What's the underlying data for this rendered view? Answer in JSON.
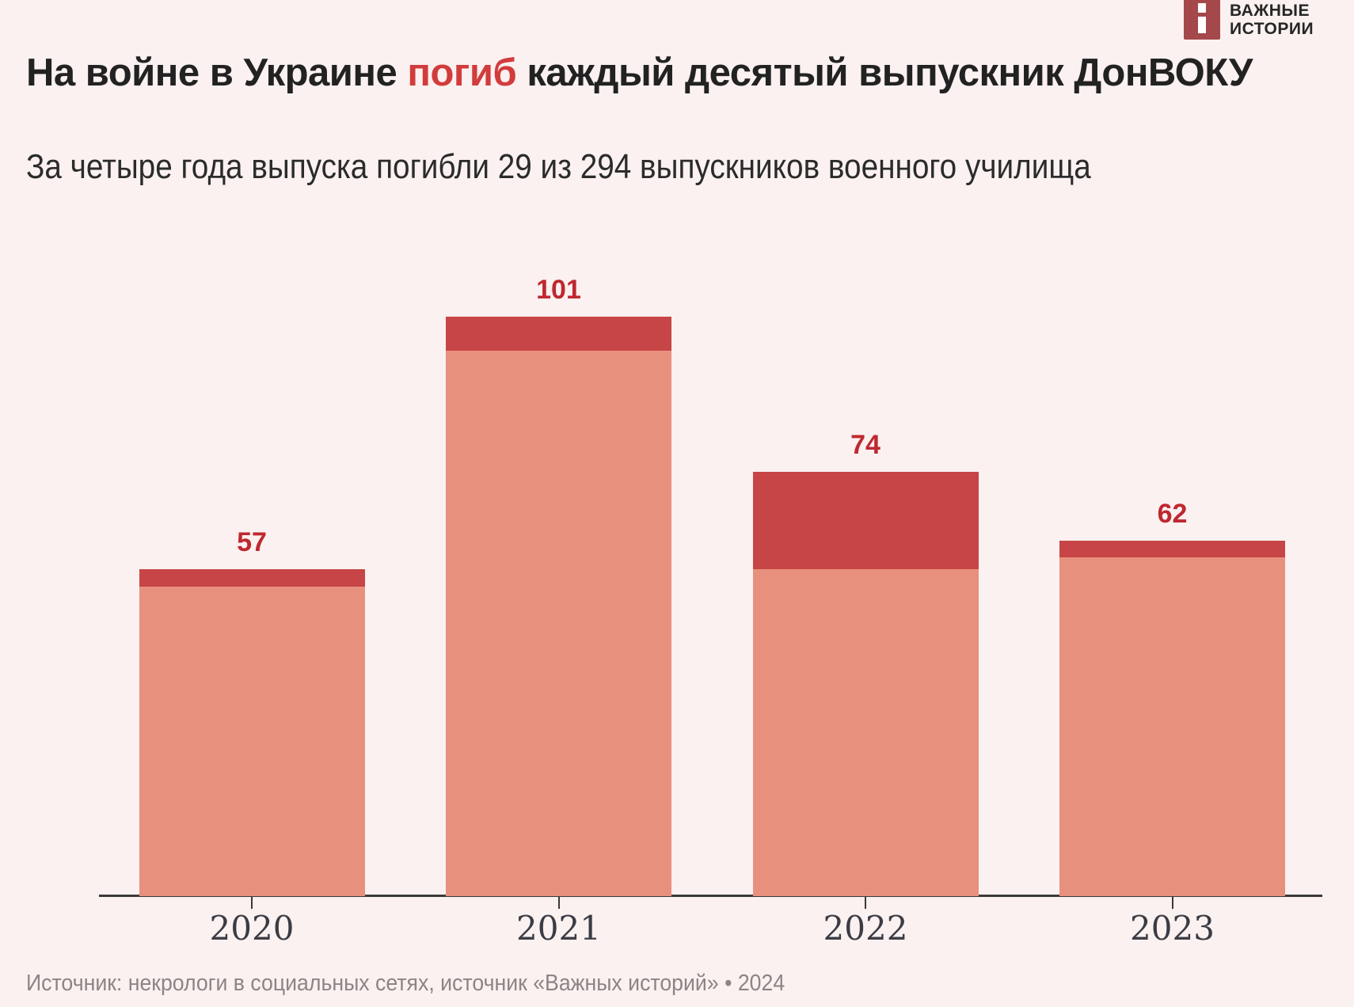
{
  "colors": {
    "background": "#faf1f0",
    "title_text": "#222222",
    "title_highlight": "#d23c3c",
    "subtitle_text": "#2b2b2b",
    "bar_light": "#e8907e",
    "bar_dark": "#c74546",
    "bar_label": "#bf2830",
    "axis": "#3a3a3a",
    "year_label": "#3b3b44",
    "source_text": "#8e8385",
    "logo_red": "#a4484c",
    "logo_text": "#262626"
  },
  "logo": {
    "line1": "ВАЖНЫЕ",
    "line2": "ИСТОРИИ"
  },
  "header": {
    "title_before": "На войне в Украине ",
    "title_highlight": "погиб",
    "title_after": " каждый десятый выпускник ДонВОКУ",
    "subtitle": "За четыре года выпуска погибли 29 из 294 выпускников военного училища"
  },
  "chart_data": {
    "type": "bar",
    "stacked": true,
    "categories": [
      "2020",
      "2021",
      "2022",
      "2023"
    ],
    "totals": [
      57,
      101,
      74,
      62
    ],
    "series": [
      {
        "name": "deaths-top-segment",
        "values": [
          3,
          6,
          17,
          3
        ]
      },
      {
        "name": "other-graduates-segment",
        "values": [
          54,
          95,
          57,
          59
        ]
      }
    ],
    "bar_value_labels": [
      "57",
      "101",
      "74",
      "62"
    ],
    "xlabel": "",
    "ylabel": "",
    "ylim": [
      0,
      110
    ],
    "grid": false,
    "legend": "none"
  },
  "footer": {
    "source": "Источник: некрологи в социальных сетях, источник «Важных историй» • 2024"
  }
}
